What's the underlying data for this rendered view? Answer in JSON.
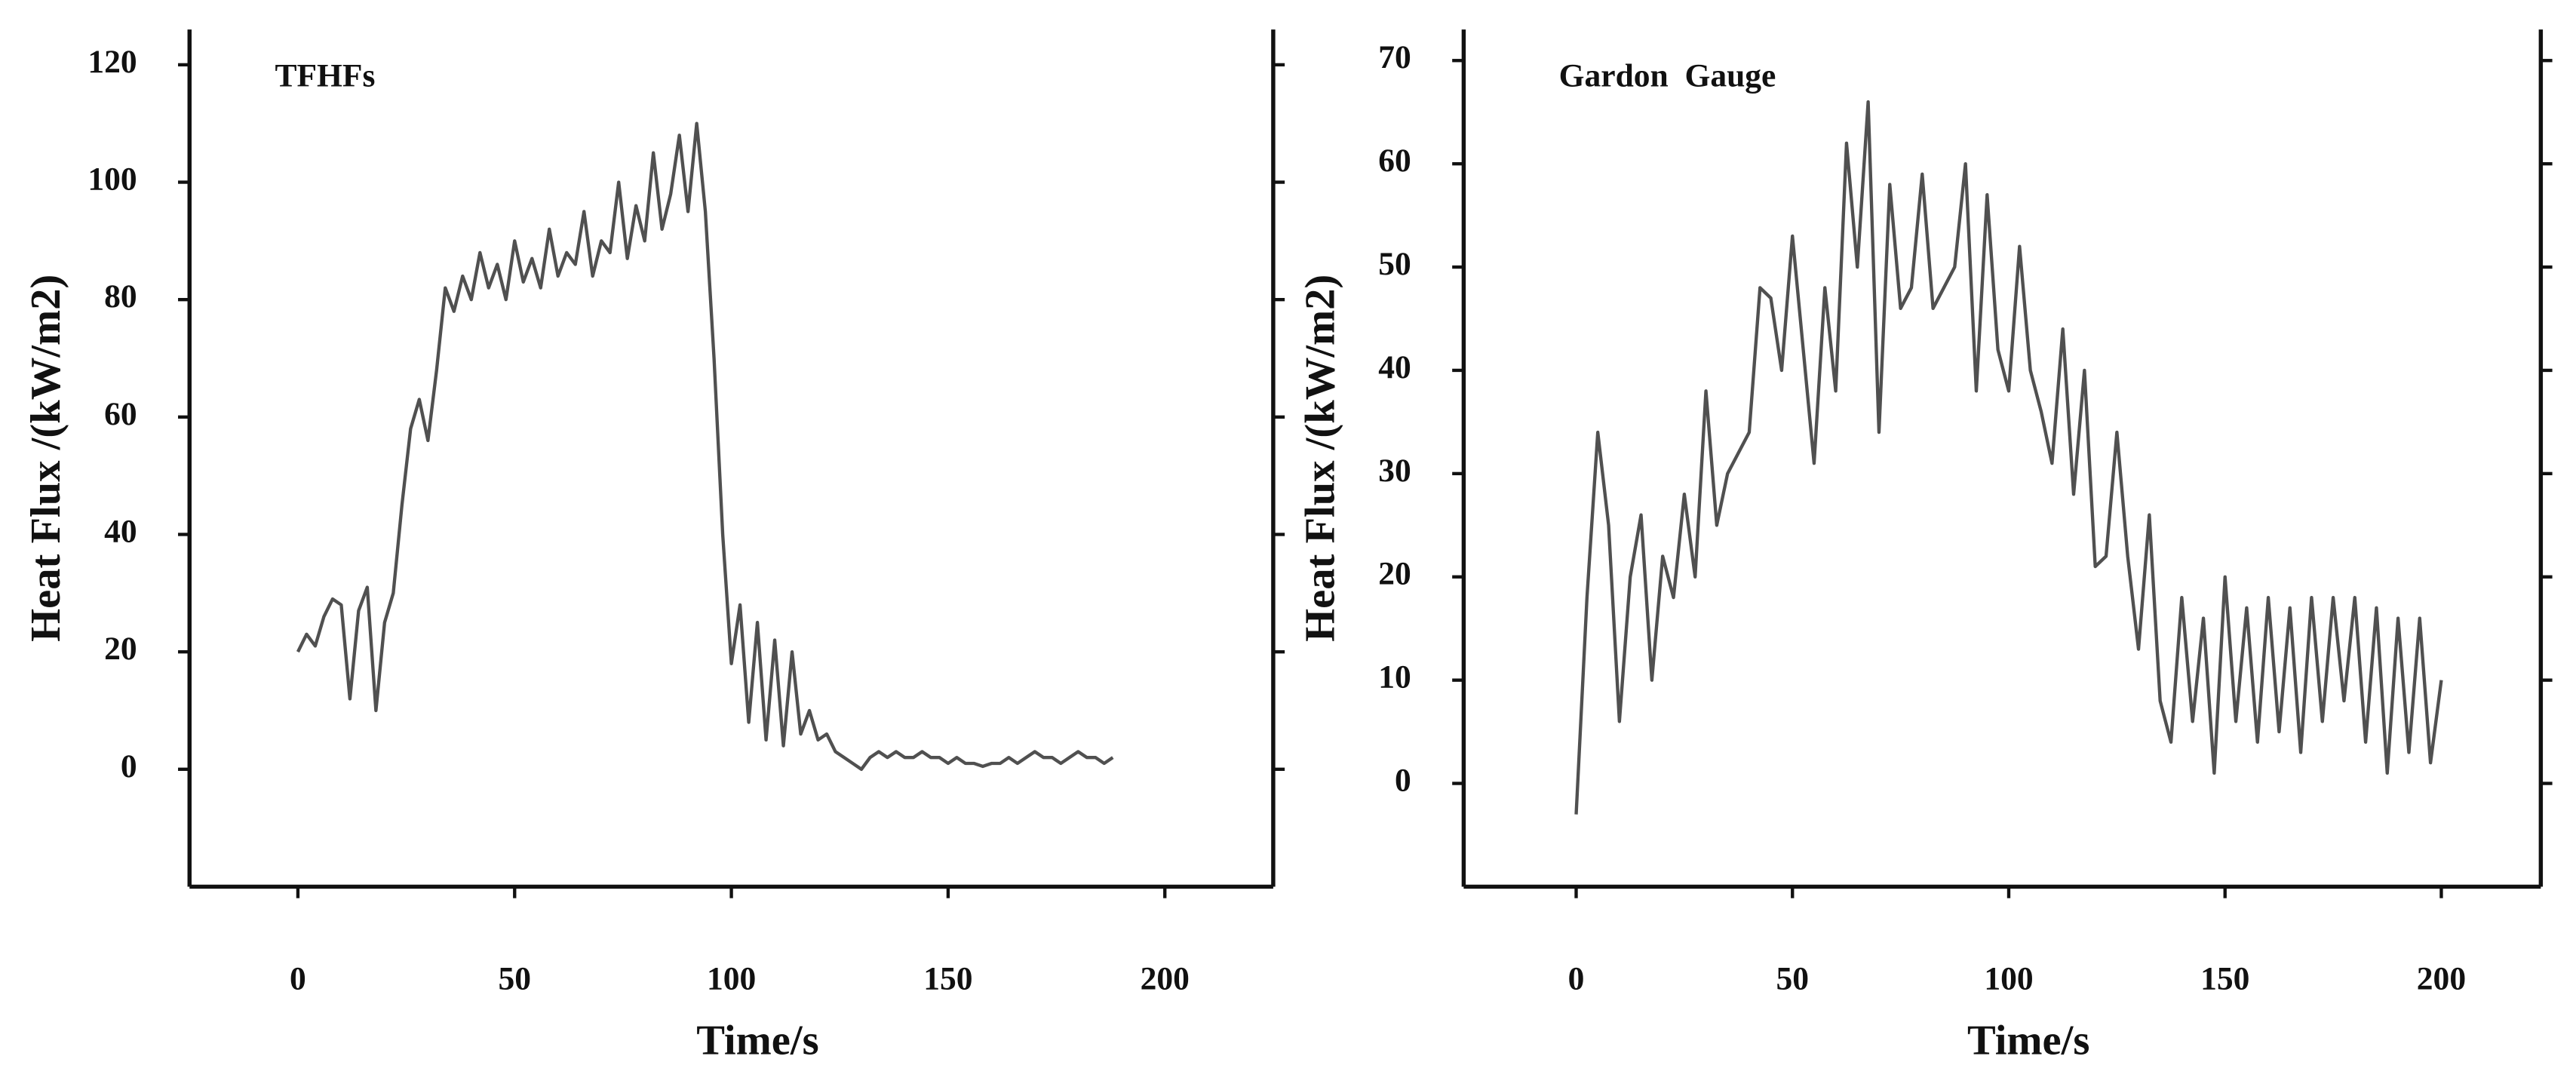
{
  "chart_data": [
    {
      "type": "line",
      "title": "TFHFs",
      "xlabel": "Time/s",
      "ylabel": "Heat Flux /(kW/m2)",
      "xlim": [
        -25,
        225
      ],
      "ylim": [
        -20,
        126
      ],
      "xticks": [
        0,
        50,
        100,
        150,
        200
      ],
      "yticks": [
        0,
        20,
        40,
        60,
        80,
        100,
        120
      ],
      "x": [
        0,
        2,
        4,
        6,
        8,
        10,
        12,
        14,
        16,
        18,
        20,
        22,
        24,
        26,
        28,
        30,
        32,
        34,
        36,
        38,
        40,
        42,
        44,
        46,
        48,
        50,
        52,
        54,
        56,
        58,
        60,
        62,
        64,
        66,
        68,
        70,
        72,
        74,
        76,
        78,
        80,
        82,
        84,
        86,
        88,
        90,
        92,
        94,
        96,
        98,
        100,
        102,
        104,
        106,
        108,
        110,
        112,
        114,
        116,
        118,
        120,
        122,
        124,
        126,
        128,
        130,
        132,
        134,
        136,
        138,
        140,
        142,
        144,
        146,
        148,
        150,
        152,
        154,
        156,
        158,
        160,
        162,
        164,
        166,
        168,
        170,
        172,
        174,
        176,
        178,
        180,
        182,
        184,
        186,
        188
      ],
      "series": [
        {
          "color": "#505050",
          "values": [
            20,
            23,
            21,
            26,
            29,
            28,
            12,
            27,
            31,
            10,
            25,
            30,
            45,
            58,
            63,
            56,
            68,
            82,
            78,
            84,
            80,
            88,
            82,
            86,
            80,
            90,
            83,
            87,
            82,
            92,
            84,
            88,
            86,
            95,
            84,
            90,
            88,
            100,
            87,
            96,
            90,
            105,
            92,
            98,
            108,
            95,
            110,
            95,
            70,
            40,
            18,
            28,
            8,
            25,
            5,
            22,
            4,
            20,
            6,
            10,
            5,
            6,
            3,
            2,
            1,
            0,
            2,
            3,
            2,
            3,
            2,
            2,
            3,
            2,
            2,
            1,
            2,
            1,
            1,
            0.5,
            1,
            1,
            2,
            1,
            2,
            3,
            2,
            2,
            1,
            2,
            3,
            2,
            2,
            1,
            2
          ]
        }
      ]
    },
    {
      "type": "line",
      "title": "Gardon  Gauge",
      "xlabel": "Time/s",
      "ylabel": "Heat Flux /(kW/m2)",
      "xlim": [
        -26,
        223
      ],
      "ylim": [
        -10,
        73
      ],
      "xticks": [
        0,
        50,
        100,
        150,
        200
      ],
      "yticks": [
        0,
        10,
        20,
        30,
        40,
        50,
        60,
        70
      ],
      "x": [
        0,
        2.5,
        5,
        7.5,
        10,
        12.5,
        15,
        17.5,
        20,
        22.5,
        25,
        27.5,
        30,
        32.5,
        35,
        37.5,
        40,
        42.5,
        45,
        47.5,
        50,
        52.5,
        55,
        57.5,
        60,
        62.5,
        65,
        67.5,
        70,
        72.5,
        75,
        77.5,
        80,
        82.5,
        85,
        87.5,
        90,
        92.5,
        95,
        97.5,
        100,
        102.5,
        105,
        107.5,
        110,
        112.5,
        115,
        117.5,
        120,
        122.5,
        125,
        127.5,
        130,
        132.5,
        135,
        137.5,
        140,
        142.5,
        145,
        147.5,
        150,
        152.5,
        155,
        157.5,
        160,
        162.5,
        165,
        167.5,
        170,
        172.5,
        175,
        177.5,
        180,
        182.5,
        185,
        187.5,
        190,
        192.5,
        195,
        197.5,
        200
      ],
      "series": [
        {
          "color": "#505050",
          "values": [
            -3,
            18,
            34,
            25,
            6,
            20,
            26,
            10,
            22,
            18,
            28,
            20,
            38,
            25,
            30,
            32,
            34,
            48,
            47,
            40,
            53,
            42,
            31,
            48,
            38,
            62,
            50,
            66,
            34,
            58,
            46,
            48,
            59,
            46,
            48,
            50,
            60,
            38,
            57,
            42,
            38,
            52,
            40,
            36,
            31,
            44,
            28,
            40,
            21,
            22,
            34,
            22,
            13,
            26,
            8,
            4,
            18,
            6,
            16,
            1,
            20,
            6,
            17,
            4,
            18,
            5,
            17,
            3,
            18,
            6,
            18,
            8,
            18,
            4,
            17,
            1,
            16,
            3,
            16,
            2,
            10
          ]
        }
      ]
    }
  ]
}
